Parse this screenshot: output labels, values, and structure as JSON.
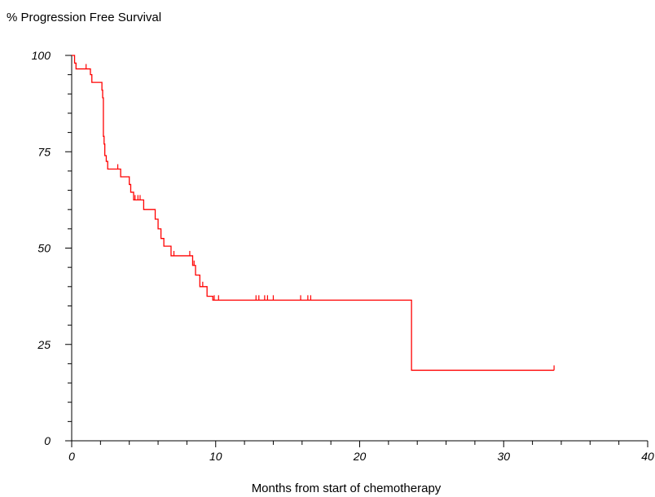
{
  "chart_data": {
    "type": "line",
    "title": "",
    "ylabel": "% Progression Free Survival",
    "xlabel": "Months from start of chemotherapy",
    "xlim": [
      0,
      40
    ],
    "ylim": [
      0,
      100
    ],
    "x_major_ticks": [
      0,
      10,
      20,
      30,
      40
    ],
    "x_tick_labels": [
      "0",
      "10",
      "20",
      "30",
      "40"
    ],
    "x_minor_step": 2,
    "y_major_ticks": [
      0,
      25,
      50,
      75,
      100
    ],
    "y_tick_labels": [
      "0",
      "25",
      "50",
      "75",
      "100"
    ],
    "y_minor_step": 5,
    "grid": false,
    "legend": "none",
    "series": [
      {
        "color": "#ff0000",
        "step": true,
        "points": [
          [
            0,
            100
          ],
          [
            0.2,
            98
          ],
          [
            0.3,
            96.5
          ],
          [
            1.2,
            96.5
          ],
          [
            1.3,
            95
          ],
          [
            1.4,
            93
          ],
          [
            2.0,
            93
          ],
          [
            2.1,
            91
          ],
          [
            2.15,
            89
          ],
          [
            2.2,
            79
          ],
          [
            2.25,
            77
          ],
          [
            2.3,
            74
          ],
          [
            2.4,
            72.5
          ],
          [
            2.5,
            70.5
          ],
          [
            3.3,
            70.5
          ],
          [
            3.4,
            68.5
          ],
          [
            3.9,
            68.5
          ],
          [
            4.0,
            66.5
          ],
          [
            4.1,
            64.5
          ],
          [
            4.3,
            62.5
          ],
          [
            4.9,
            62.5
          ],
          [
            5.0,
            60
          ],
          [
            5.7,
            60
          ],
          [
            5.8,
            57.5
          ],
          [
            6.0,
            55
          ],
          [
            6.2,
            52.5
          ],
          [
            6.4,
            50.5
          ],
          [
            6.8,
            50.5
          ],
          [
            6.9,
            48
          ],
          [
            8.3,
            48
          ],
          [
            8.4,
            45.5
          ],
          [
            8.6,
            43
          ],
          [
            8.9,
            40
          ],
          [
            9.3,
            40
          ],
          [
            9.4,
            37.5
          ],
          [
            9.7,
            37.5
          ],
          [
            9.8,
            36.5
          ],
          [
            23.5,
            36.5
          ],
          [
            23.6,
            18.3
          ],
          [
            33.5,
            18.3
          ]
        ],
        "censored": [
          [
            1.0,
            96.5
          ],
          [
            3.2,
            70.5
          ],
          [
            4.4,
            62.5
          ],
          [
            4.6,
            62.5
          ],
          [
            4.75,
            62.5
          ],
          [
            7.1,
            48
          ],
          [
            8.2,
            48
          ],
          [
            8.5,
            45.5
          ],
          [
            9.1,
            40
          ],
          [
            9.9,
            36.5
          ],
          [
            10.2,
            36.5
          ],
          [
            12.8,
            36.5
          ],
          [
            13.0,
            36.5
          ],
          [
            13.4,
            36.5
          ],
          [
            13.6,
            36.5
          ],
          [
            14.0,
            36.5
          ],
          [
            15.9,
            36.5
          ],
          [
            16.4,
            36.5
          ],
          [
            16.6,
            36.5
          ],
          [
            33.5,
            18.3
          ]
        ]
      }
    ]
  }
}
